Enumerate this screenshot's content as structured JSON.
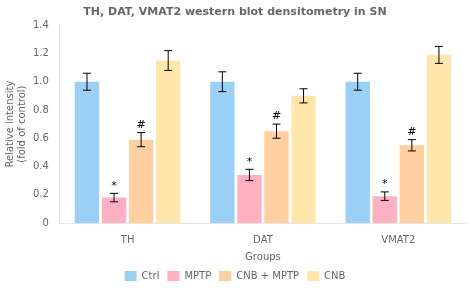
{
  "chart_data": {
    "type": "bar",
    "title": "TH, DAT, VMAT2 western blot densitometry in SN",
    "xlabel": "Groups",
    "ylabel": "Relative intensity\n(fold of control)",
    "categories": [
      "TH",
      "DAT",
      "VMAT2"
    ],
    "series": [
      {
        "name": "Ctrl",
        "values": [
          1.0,
          1.0,
          1.0
        ],
        "errors": [
          0.06,
          0.07,
          0.06
        ]
      },
      {
        "name": "MPTP",
        "values": [
          0.18,
          0.34,
          0.19
        ],
        "errors": [
          0.03,
          0.04,
          0.03
        ]
      },
      {
        "name": "CNB + MPTP",
        "values": [
          0.59,
          0.65,
          0.55
        ],
        "errors": [
          0.05,
          0.05,
          0.04
        ]
      },
      {
        "name": "CNB",
        "values": [
          1.15,
          0.9,
          1.19
        ],
        "errors": [
          0.07,
          0.05,
          0.06
        ]
      }
    ],
    "annotations": [
      {
        "category": "TH",
        "series": "MPTP",
        "text": "*"
      },
      {
        "category": "DAT",
        "series": "MPTP",
        "text": "*"
      },
      {
        "category": "VMAT2",
        "series": "MPTP",
        "text": "*"
      },
      {
        "category": "TH",
        "series": "CNB + MPTP",
        "text": "#"
      },
      {
        "category": "DAT",
        "series": "CNB + MPTP",
        "text": "#"
      },
      {
        "category": "VMAT2",
        "series": "CNB + MPTP",
        "text": "#"
      }
    ],
    "ylim": [
      0,
      1.4
    ],
    "yticks": [
      0,
      0.2,
      0.4,
      0.6,
      0.8,
      {
        "value": 1,
        "label": "1.0"
      },
      1.2,
      1.4
    ],
    "grid": false,
    "legend": "bottom"
  }
}
